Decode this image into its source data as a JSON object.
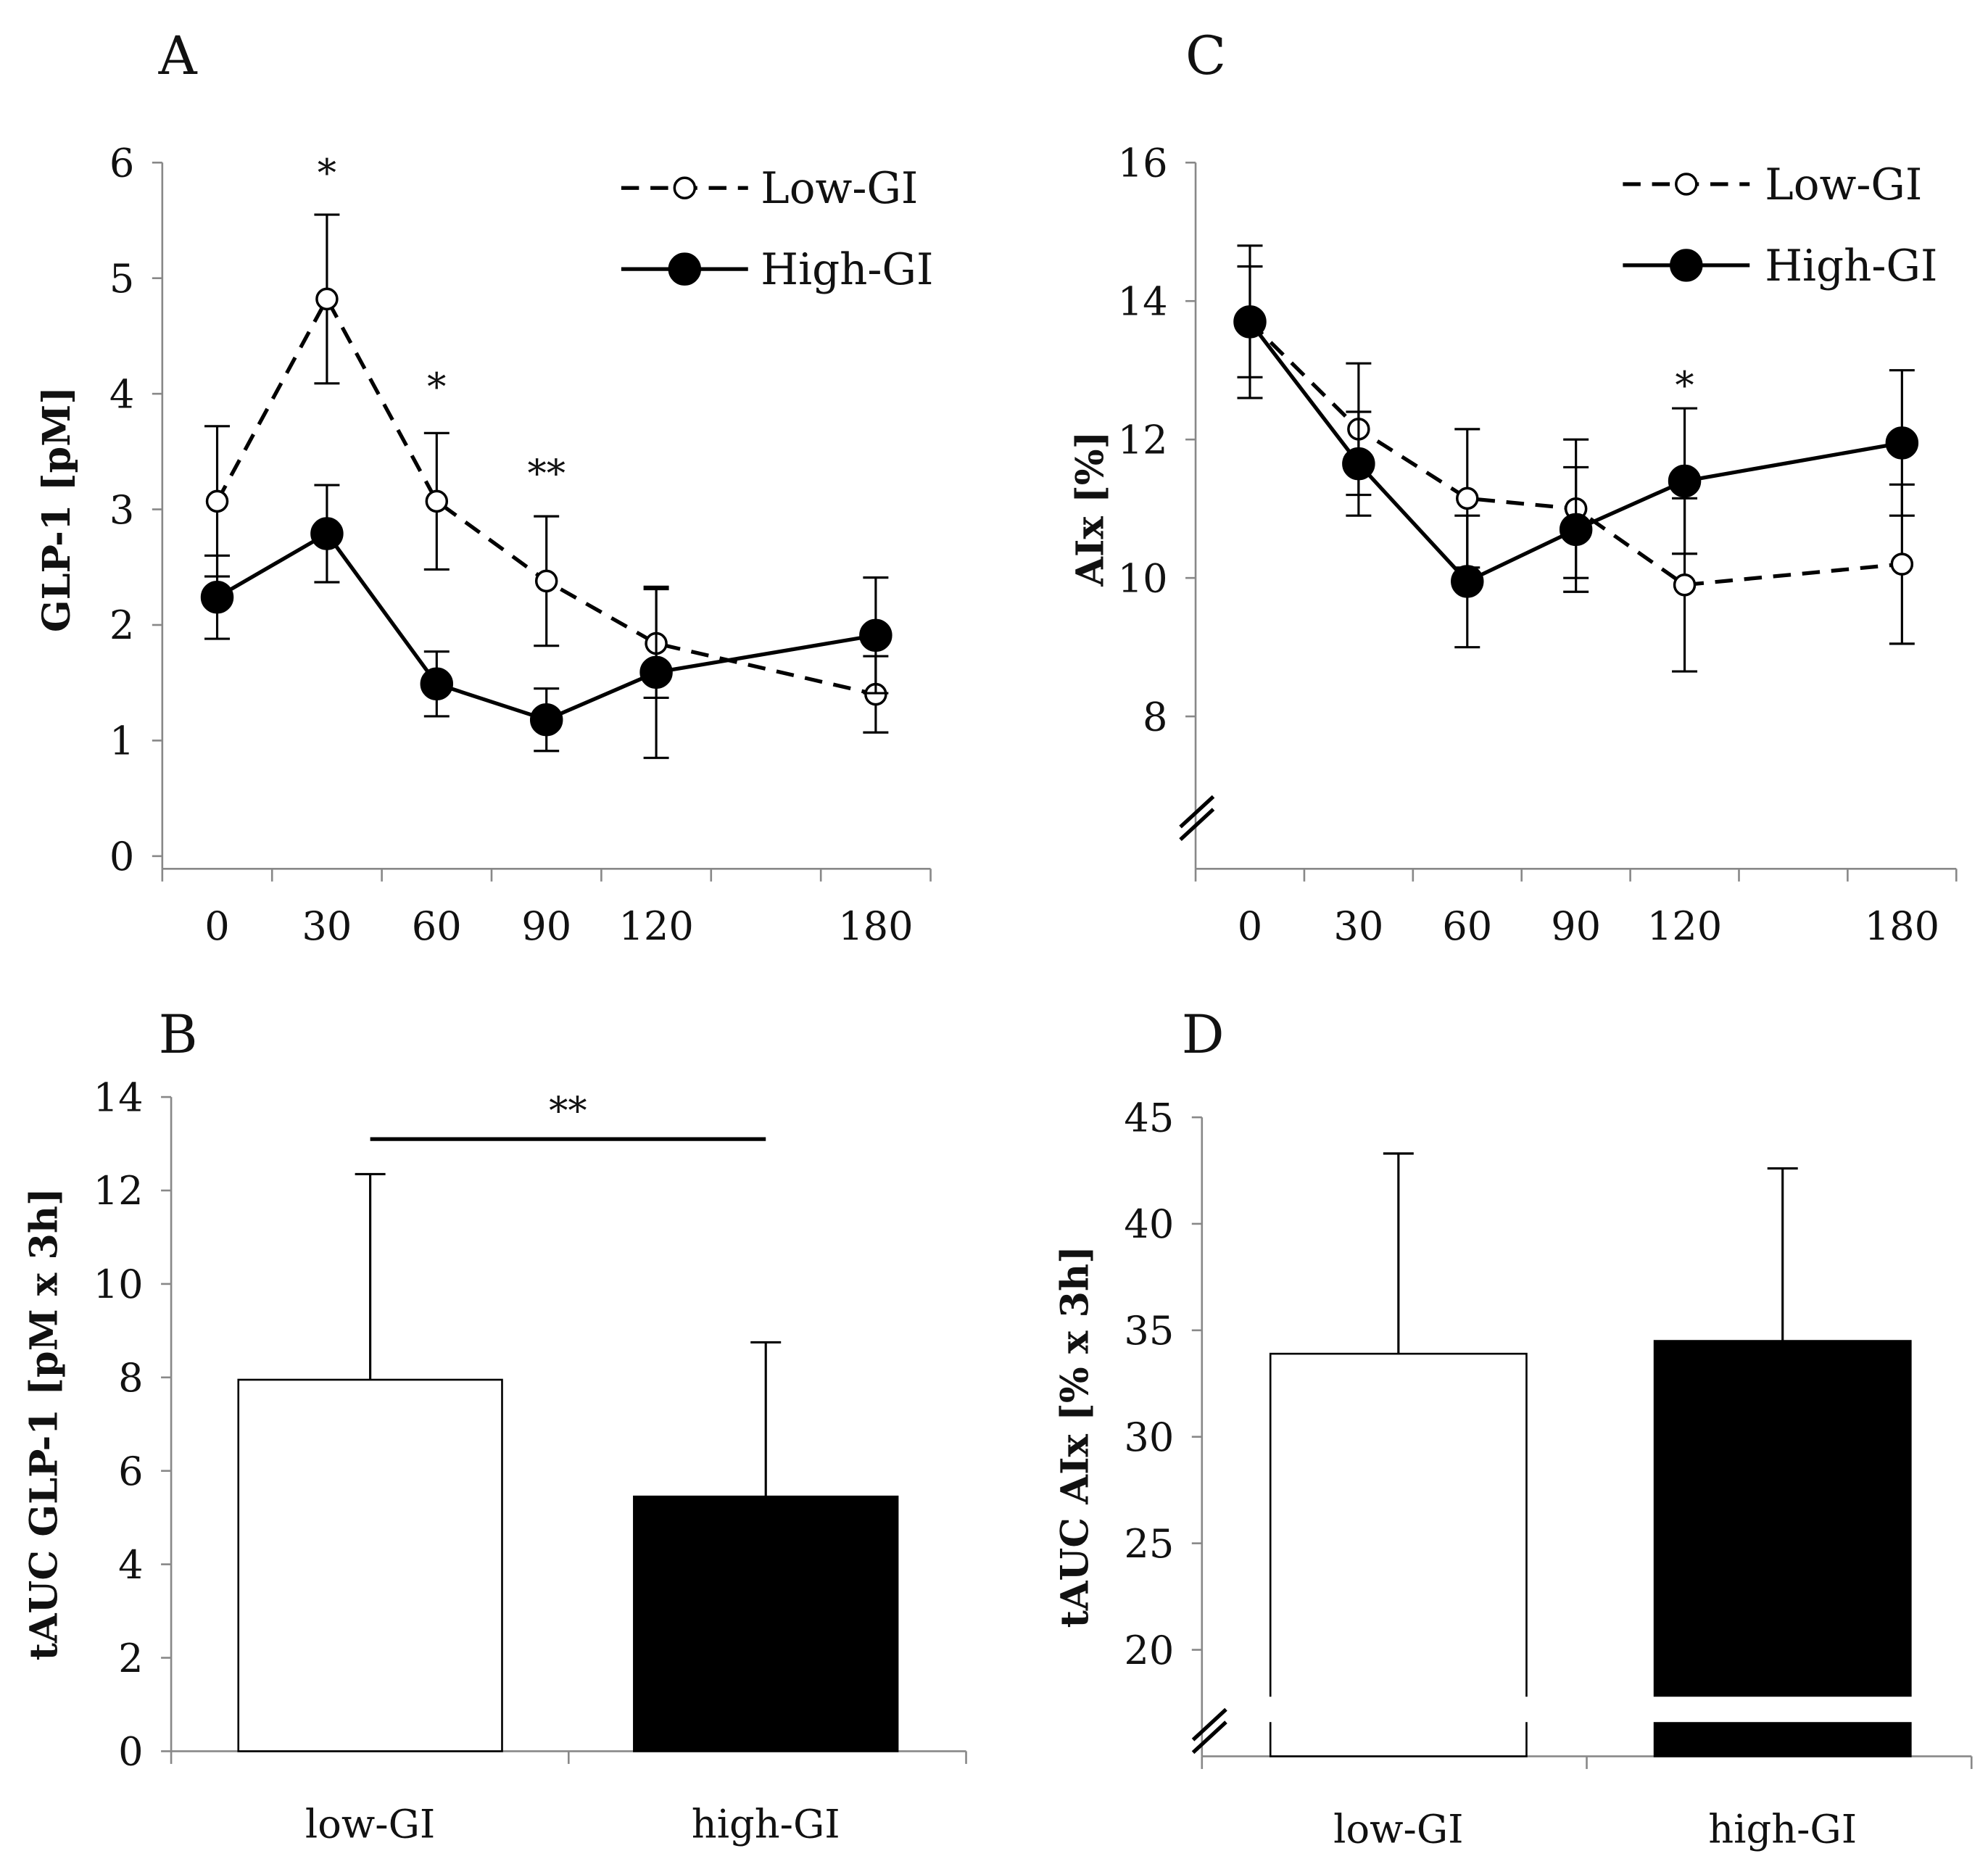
{
  "chart_data": [
    {
      "panel": "A",
      "type": "line",
      "ylabel": "GLP-1 [pM]",
      "xlabel": "",
      "x": [
        0,
        30,
        60,
        90,
        120,
        180
      ],
      "x_tick_labels": [
        "0",
        "30",
        "60",
        "90",
        "120",
        "180"
      ],
      "ylim": [
        0,
        6
      ],
      "yticks": [
        0,
        1,
        2,
        3,
        4,
        5,
        6
      ],
      "legend": "top-right",
      "series": [
        {
          "name": "Low-GI",
          "style": "dashed-open-circle",
          "values": [
            3.07,
            4.82,
            3.07,
            2.38,
            1.84,
            1.4
          ],
          "err": [
            0.65,
            0.73,
            0.59,
            0.56,
            0.47,
            0.33
          ]
        },
        {
          "name": "High-GI",
          "style": "solid-filled-circle",
          "values": [
            2.24,
            2.79,
            1.49,
            1.18,
            1.59,
            1.91
          ],
          "err": [
            0.36,
            0.42,
            0.28,
            0.27,
            0.74,
            0.5
          ]
        }
      ],
      "annotations": [
        {
          "x": 30,
          "text": "*",
          "y": 5.95
        },
        {
          "x": 60,
          "text": "*",
          "y": 4.1
        },
        {
          "x": 90,
          "text": "**",
          "y": 3.35
        }
      ]
    },
    {
      "panel": "C",
      "type": "line",
      "ylabel": "AIx [%]",
      "xlabel": "",
      "x": [
        0,
        30,
        60,
        90,
        120,
        180
      ],
      "x_tick_labels": [
        "0",
        "30",
        "60",
        "90",
        "120",
        "180"
      ],
      "ylim": [
        6,
        16
      ],
      "yticks": [
        8,
        10,
        12,
        14,
        16
      ],
      "axis_break": true,
      "legend": "top-right",
      "series": [
        {
          "name": "Low-GI",
          "style": "dashed-open-circle",
          "values": [
            13.7,
            12.15,
            11.15,
            11.0,
            9.9,
            10.2
          ],
          "err": [
            0.8,
            0.95,
            1.0,
            1.0,
            1.25,
            1.15
          ]
        },
        {
          "name": "High-GI",
          "style": "solid-filled-circle",
          "values": [
            13.7,
            11.65,
            9.95,
            10.7,
            11.4,
            11.95
          ],
          "err": [
            1.1,
            0.75,
            0.95,
            0.9,
            1.05,
            1.05
          ]
        }
      ],
      "annotations": [
        {
          "x": 120,
          "text": "*",
          "y": 12.85
        }
      ]
    },
    {
      "panel": "B",
      "type": "bar",
      "ylabel": "tAUC GLP-1 [pM x 3h]",
      "xlabel": "",
      "categories": [
        "low-GI",
        "high-GI"
      ],
      "values": [
        7.95,
        5.45
      ],
      "err": [
        4.4,
        3.3
      ],
      "colors": [
        "#ffffff",
        "#000000"
      ],
      "ylim": [
        0,
        14
      ],
      "yticks": [
        0,
        2,
        4,
        6,
        8,
        10,
        12,
        14
      ],
      "significance": {
        "text": "**",
        "between": [
          "low-GI",
          "high-GI"
        ],
        "y": 13.1
      }
    },
    {
      "panel": "D",
      "type": "bar",
      "ylabel": "tAUC AIx [% x 3h]",
      "xlabel": "",
      "categories": [
        "low-GI",
        "high-GI"
      ],
      "values": [
        33.9,
        34.5
      ],
      "err": [
        9.4,
        8.1
      ],
      "colors": [
        "#ffffff",
        "#000000"
      ],
      "ylim": [
        15,
        45
      ],
      "yticks": [
        20,
        25,
        30,
        35,
        40,
        45
      ],
      "axis_break": true
    }
  ]
}
